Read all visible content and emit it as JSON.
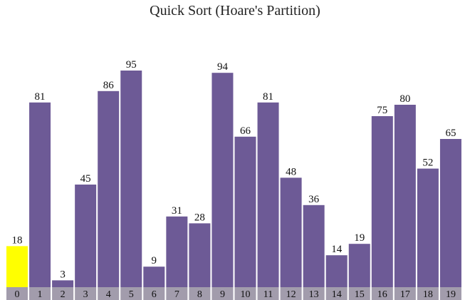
{
  "chart_data": {
    "type": "bar",
    "title": "Quick Sort (Hoare's Partition)",
    "categories": [
      "0",
      "1",
      "2",
      "3",
      "4",
      "5",
      "6",
      "7",
      "8",
      "9",
      "10",
      "11",
      "12",
      "13",
      "14",
      "15",
      "16",
      "17",
      "18",
      "19"
    ],
    "values": [
      18,
      81,
      3,
      45,
      86,
      95,
      9,
      31,
      28,
      94,
      66,
      81,
      48,
      36,
      14,
      19,
      75,
      80,
      52,
      65
    ],
    "highlight_index": 0,
    "ylim": [
      0,
      100
    ],
    "grid": false,
    "colors": {
      "bar": "#6d5a96",
      "highlight": "#ffff00",
      "index_cell": "#a29cac"
    }
  }
}
